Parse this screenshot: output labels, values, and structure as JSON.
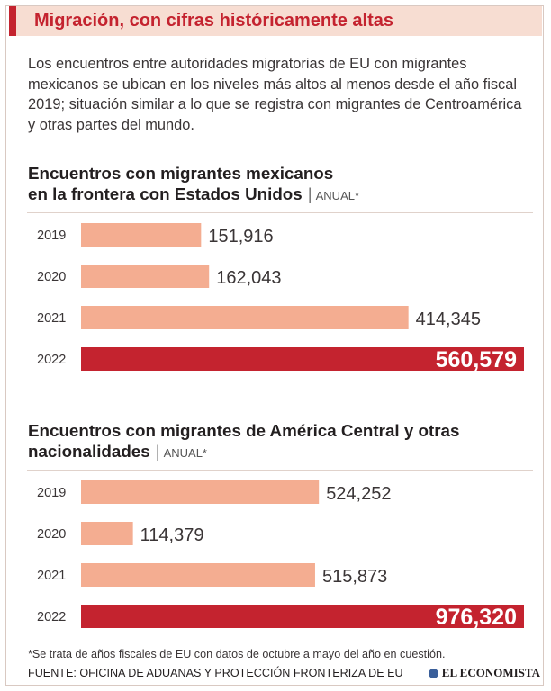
{
  "header": {
    "title": "Migración, con cifras históricamente altas"
  },
  "intro": "Los encuentros entre autoridades migratorias de EU con migrantes mexicanos se ubican en los niveles más altos al menos desde el año fiscal 2019; situación similar a lo que se registra con migrantes de Centroamérica y otras partes del mundo.",
  "chart1_heading": {
    "line1": "Encuentros con migrantes mexicanos",
    "line2": "en la frontera con Estados Unidos",
    "sep": "|",
    "unit": "ANUAL*"
  },
  "chart2_heading": {
    "line1": "Encuentros con migrantes de América Central y otras",
    "line2": "nacionalidades",
    "sep": "|",
    "unit": "ANUAL*"
  },
  "chart_data": [
    {
      "type": "bar",
      "orientation": "horizontal",
      "title": "Encuentros con migrantes mexicanos en la frontera con Estados Unidos",
      "categories": [
        "2019",
        "2020",
        "2021",
        "2022"
      ],
      "values": [
        151916,
        162043,
        414345,
        560579
      ],
      "value_labels": [
        "151,916",
        "162,043",
        "414,345",
        "560,579"
      ],
      "highlight_index": 3,
      "xlim": [
        0,
        560579
      ]
    },
    {
      "type": "bar",
      "orientation": "horizontal",
      "title": "Encuentros con migrantes de América Central y otras nacionalidades",
      "categories": [
        "2019",
        "2020",
        "2021",
        "2022"
      ],
      "values": [
        524252,
        114379,
        515873,
        976320
      ],
      "value_labels": [
        "524,252",
        "114,379",
        "515,873",
        "976,320"
      ],
      "highlight_index": 3,
      "xlim": [
        0,
        976320
      ]
    }
  ],
  "colors": {
    "accent": "#c4232f",
    "bar": "#f4ad91",
    "header_bg": "#f7ddd2",
    "highlight_text": "#ffffff"
  },
  "footnote": "*Se trata de años fiscales de EU con datos de octubre a mayo del año en cuestión.",
  "source": "FUENTE: OFICINA DE ADUANAS Y PROTECCIÓN FRONTERIZA DE EU",
  "brand": "EL ECONOMISTA"
}
